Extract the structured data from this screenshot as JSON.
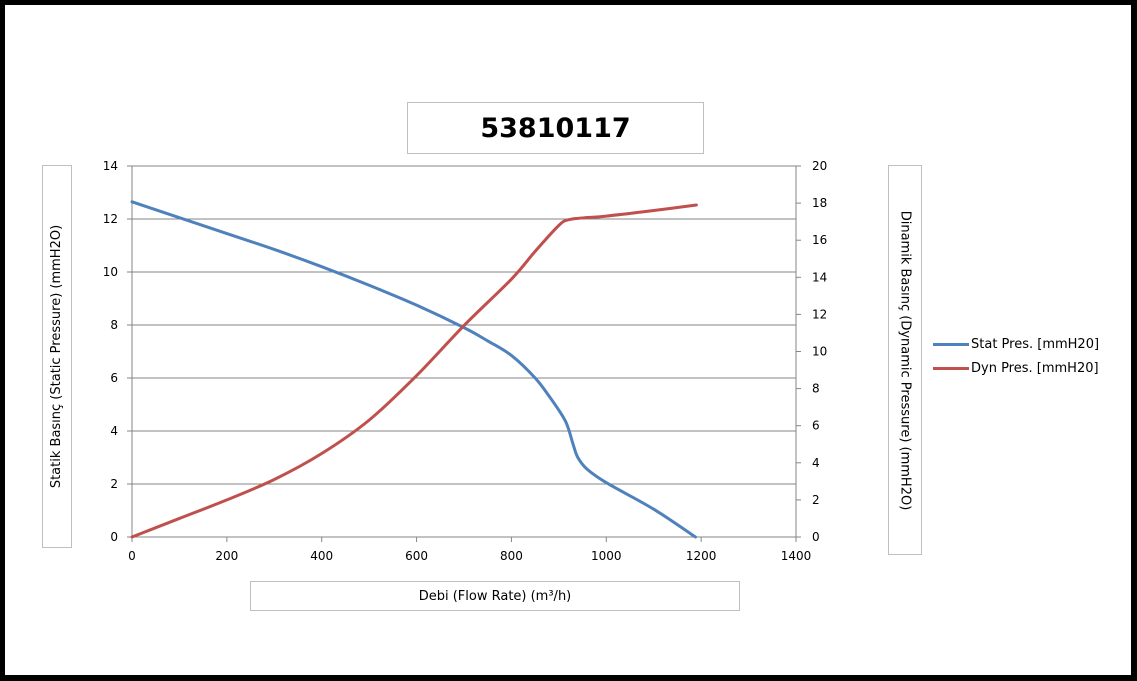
{
  "chart_data": {
    "type": "line",
    "title": "53810117",
    "xlabel": "Debi (Flow Rate) (m³/h)",
    "ylabel": "Statik Basınç (Static Pressure) (mmH2O)",
    "y2label": "Dinamik Basınç (Dynamic Pressure) (mmH2O)",
    "xlim": [
      0,
      1400
    ],
    "ylim": [
      0,
      14
    ],
    "y2lim": [
      0,
      20
    ],
    "x_ticks": [
      "0",
      "200",
      "400",
      "600",
      "800",
      "1000",
      "1200",
      "1400"
    ],
    "y_ticks": [
      "0",
      "2",
      "4",
      "6",
      "8",
      "10",
      "12",
      "14"
    ],
    "y2_ticks": [
      "0",
      "2",
      "4",
      "6",
      "8",
      "10",
      "12",
      "14",
      "16",
      "18",
      "20"
    ],
    "grid": "horizontal",
    "legend_position": "right",
    "series": [
      {
        "name": "Stat Pres. [mmH20]",
        "axis": "left",
        "color": "#4f81bd",
        "x": [
          0,
          100,
          200,
          300,
          400,
          500,
          600,
          700,
          750,
          800,
          850,
          880,
          910,
          920,
          930,
          940,
          960,
          1000,
          1100,
          1188
        ],
        "y": [
          12.65,
          12.05,
          11.45,
          10.85,
          10.2,
          9.5,
          8.75,
          7.9,
          7.4,
          6.85,
          6.0,
          5.3,
          4.5,
          4.1,
          3.5,
          3.0,
          2.55,
          2.05,
          1.05,
          0
        ]
      },
      {
        "name": "Dyn Pres. [mmH20]",
        "axis": "right",
        "color": "#c0504d",
        "x": [
          0,
          100,
          200,
          300,
          400,
          500,
          600,
          700,
          800,
          850,
          900,
          920,
          950,
          1000,
          1100,
          1190
        ],
        "y": [
          0,
          1.0,
          2.0,
          3.1,
          4.5,
          6.3,
          8.7,
          11.4,
          13.9,
          15.4,
          16.8,
          17.1,
          17.2,
          17.3,
          17.6,
          17.9
        ]
      }
    ]
  }
}
